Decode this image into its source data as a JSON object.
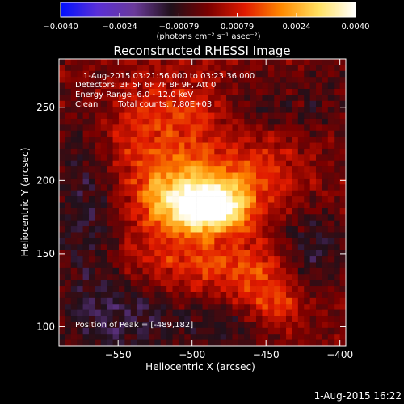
{
  "chart_data": {
    "type": "heatmap",
    "title": "Reconstructed RHESSI Image",
    "xlabel": "Heliocentric X (arcsec)",
    "ylabel": "Heliocentric Y (arcsec)",
    "xlim": [
      -590,
      -396
    ],
    "ylim": [
      87,
      283
    ],
    "x_ticks": [
      -550,
      -500,
      -450,
      -400
    ],
    "x_tick_labels": [
      "−550",
      "−500",
      "−450",
      "−400"
    ],
    "y_ticks": [
      100,
      150,
      200,
      250
    ],
    "y_tick_labels": [
      "100",
      "150",
      "200",
      "250"
    ],
    "colorbar": {
      "range": [
        -0.004,
        0.004
      ],
      "ticks": [
        -0.004,
        -0.0024,
        -0.00079,
        0.00079,
        0.0024,
        0.004
      ],
      "tick_labels": [
        "−0.0040",
        "−0.0024",
        "−0.00079",
        "0.00079",
        "0.0024",
        "0.0040"
      ],
      "unit": "(photons cm⁻² s⁻¹ asec⁻²)",
      "colors": [
        "#0010ff",
        "#5a2fd6",
        "#6a3a9a",
        "#20101a",
        "#7a0000",
        "#e11a00",
        "#ff8a00",
        "#ffe060",
        "#ffffff"
      ]
    },
    "annotations": {
      "time_range": "1-Aug-2015 03:21:56.000 to 03:23:36.000",
      "detectors": "Detectors: 3F 5F 6F 7F 8F 9F, Att 0",
      "energy_range": "Energy Range: 6.0 - 12.0 keV",
      "algorithm": "Clean",
      "total_counts": "Total counts: 7.80E+03",
      "peak": "Position of Peak = [-489,182]"
    },
    "peak_position": [
      -489,
      182
    ],
    "sources": [
      {
        "x": -489,
        "y": 182,
        "intensity": 0.004,
        "sx": 18,
        "sy": 11
      },
      {
        "x": -508,
        "y": 192,
        "intensity": 0.0022,
        "sx": 26,
        "sy": 20
      },
      {
        "x": -455,
        "y": 205,
        "intensity": 0.001,
        "sx": 22,
        "sy": 18
      },
      {
        "x": -540,
        "y": 235,
        "intensity": 0.0009,
        "sx": 22,
        "sy": 25
      },
      {
        "x": -500,
        "y": 245,
        "intensity": 0.0008,
        "sx": 20,
        "sy": 18
      },
      {
        "x": -447,
        "y": 130,
        "intensity": 0.0012,
        "sx": 16,
        "sy": 18
      },
      {
        "x": -440,
        "y": 112,
        "intensity": 0.0008,
        "sx": 12,
        "sy": 10
      },
      {
        "x": -520,
        "y": 145,
        "intensity": 0.0008,
        "sx": 25,
        "sy": 14
      },
      {
        "x": -478,
        "y": 142,
        "intensity": 0.0009,
        "sx": 20,
        "sy": 15
      },
      {
        "x": -570,
        "y": 185,
        "intensity": -0.0012,
        "sx": 18,
        "sy": 50
      },
      {
        "x": -545,
        "y": 105,
        "intensity": -0.0011,
        "sx": 30,
        "sy": 20
      },
      {
        "x": -420,
        "y": 150,
        "intensity": -0.0012,
        "sx": 18,
        "sy": 22
      },
      {
        "x": -455,
        "y": 252,
        "intensity": -0.0007,
        "sx": 18,
        "sy": 14
      },
      {
        "x": -410,
        "y": 255,
        "intensity": -0.0006,
        "sx": 16,
        "sy": 18
      },
      {
        "x": -475,
        "y": 100,
        "intensity": -0.0008,
        "sx": 25,
        "sy": 12
      }
    ]
  },
  "footer": {
    "timestamp": "1-Aug-2015 16:22"
  }
}
